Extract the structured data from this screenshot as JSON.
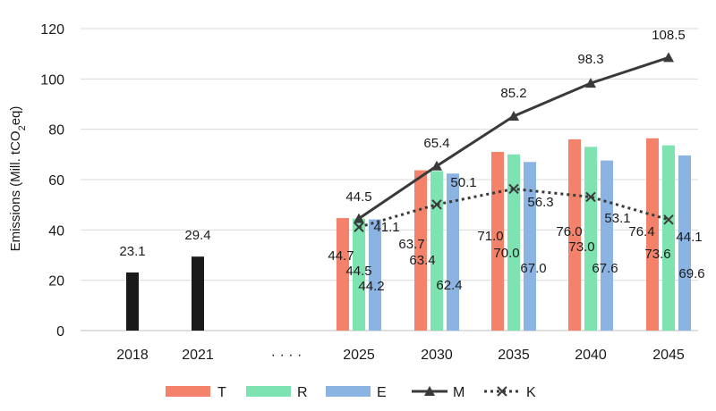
{
  "chart_data": {
    "type": "bar",
    "categories": [
      "2018",
      "2021",
      "· · · ·",
      "2025",
      "2030",
      "2035",
      "2040",
      "2045"
    ],
    "ylabel": "Emissions (Mill. tCO",
    "ylabel_sub": "2",
    "ylabel_end": "eq)",
    "ylim": [
      0,
      120
    ],
    "yticks": [
      0,
      20,
      40,
      60,
      80,
      100,
      120
    ],
    "ytick_labels": [
      "0",
      "20",
      "40",
      "60",
      "80",
      "100",
      "120"
    ],
    "grid": true,
    "historical": {
      "categories": [
        "2018",
        "2021"
      ],
      "values": [
        23.1,
        29.4
      ],
      "labels": [
        "23.1",
        "29.4"
      ],
      "color": "#1a1a1a"
    },
    "projection_categories": [
      "2025",
      "2030",
      "2035",
      "2040",
      "2045"
    ],
    "bar_series": [
      {
        "name": "T",
        "color": "#f4826a",
        "values": [
          44.7,
          63.7,
          71.0,
          76.0,
          76.4
        ],
        "labels": [
          "44.7",
          "63.7",
          "71.0",
          "76.0",
          "76.4"
        ]
      },
      {
        "name": "R",
        "color": "#7de3b0",
        "values": [
          44.5,
          63.4,
          70.0,
          73.0,
          73.6
        ],
        "labels": [
          "44.5",
          "63.4",
          "70.0",
          "73.0",
          "73.6"
        ]
      },
      {
        "name": "E",
        "color": "#8cb4e2",
        "values": [
          44.2,
          62.4,
          67.0,
          67.6,
          69.6
        ],
        "labels": [
          "44.2",
          "62.4",
          "67.0",
          "67.6",
          "69.6"
        ]
      }
    ],
    "line_series": [
      {
        "name": "M",
        "style": "solid-triangle",
        "color": "#3a3a3a",
        "values": [
          44.5,
          65.4,
          85.2,
          98.3,
          108.5
        ],
        "labels": [
          "44.5",
          "65.4",
          "85.2",
          "98.3",
          "108.5"
        ]
      },
      {
        "name": "K",
        "style": "dotted-x",
        "color": "#3a3a3a",
        "values": [
          41.1,
          50.1,
          56.3,
          53.1,
          44.1
        ],
        "labels": [
          "41.1",
          "50.1",
          "56.3",
          "53.1",
          "44.1"
        ]
      }
    ],
    "legend": [
      "T",
      "R",
      "E",
      "M",
      "K"
    ],
    "legend_position": "bottom"
  }
}
